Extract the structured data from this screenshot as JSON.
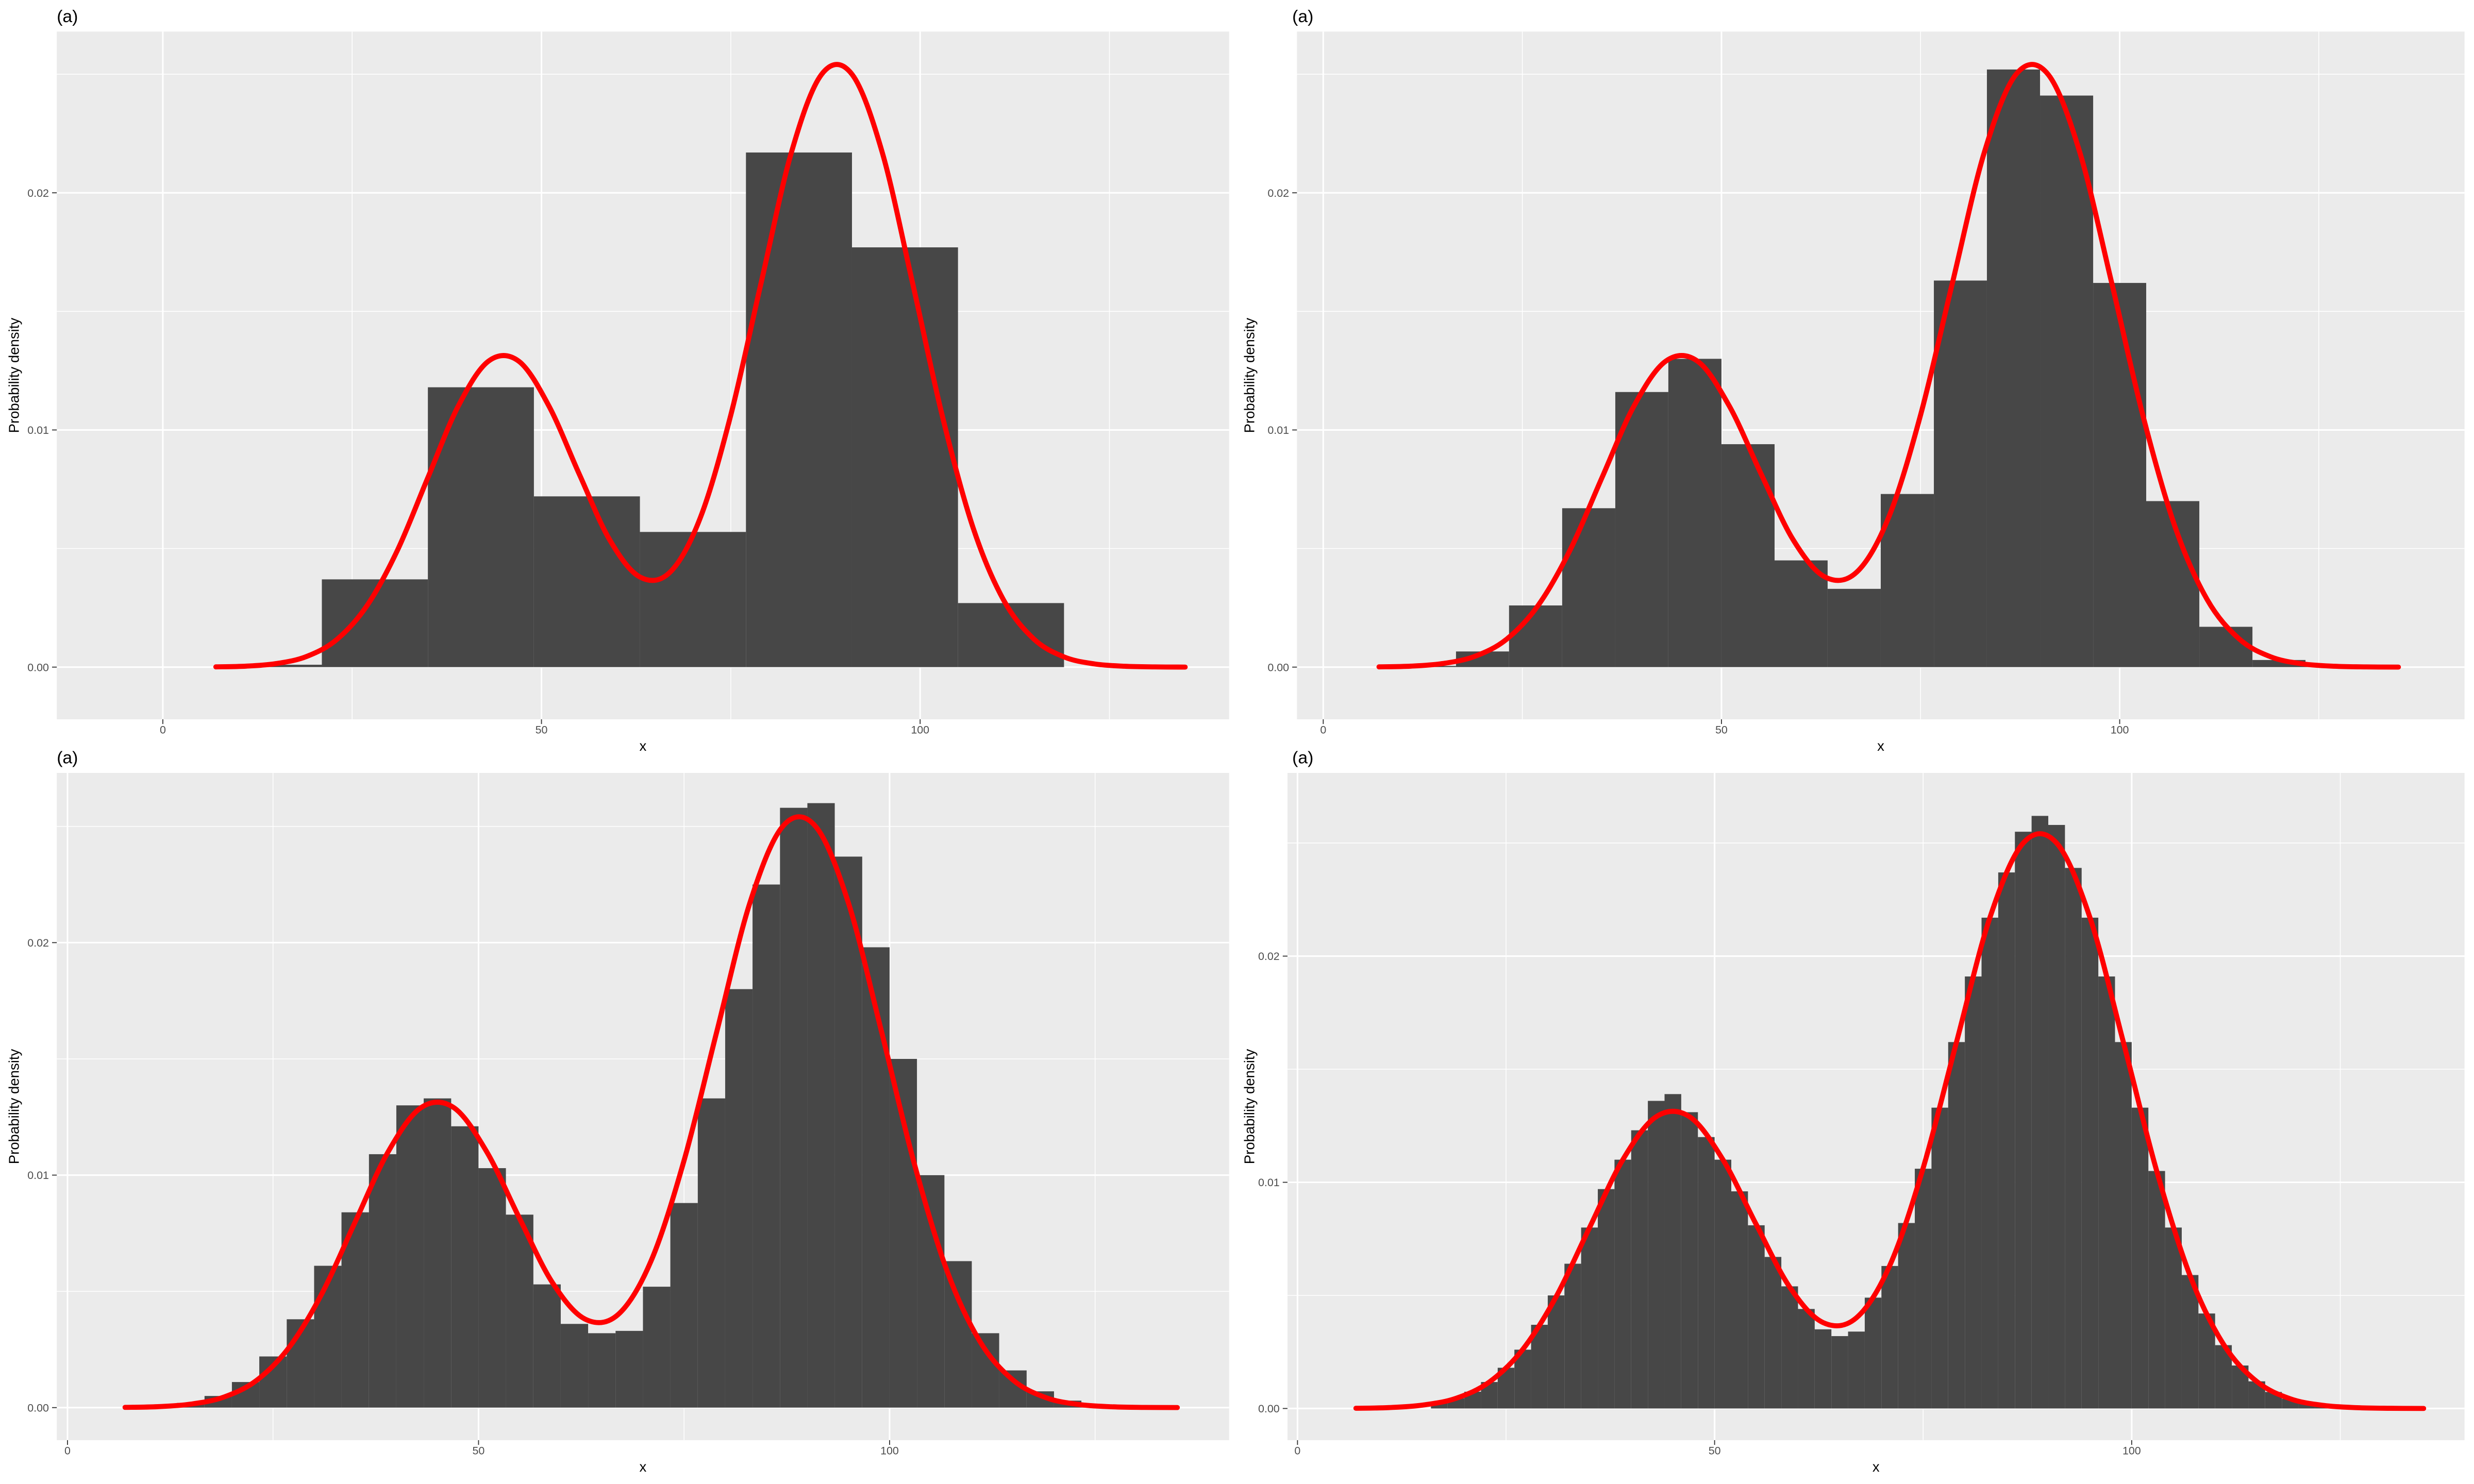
{
  "chart_data": [
    {
      "type": "histogram",
      "title": "(a)",
      "x_label": "x",
      "y_label": "Probability density",
      "color": "#474747",
      "background": "#ebebeb",
      "grid": true,
      "bins": [
        7,
        21,
        35,
        49,
        63,
        77,
        91,
        105,
        119
      ],
      "values": [
        0.0001,
        0.0037,
        0.0118,
        0.0072,
        0.0057,
        0.0217,
        0.0177,
        0.0027
      ],
      "line": {
        "color": "#ff0000",
        "x": [
          7,
          11,
          15,
          19,
          23,
          27,
          31,
          35,
          39,
          43,
          47,
          51,
          55,
          59,
          63,
          67,
          71,
          75,
          79,
          83,
          87,
          91,
          95,
          99,
          103,
          107,
          111,
          115,
          119,
          123,
          127,
          131,
          135
        ],
        "values": [
          1e-05,
          4e-05,
          0.00015,
          0.00045,
          0.00117,
          0.00261,
          0.00494,
          0.00799,
          0.011,
          0.0129,
          0.0129,
          0.011,
          0.00813,
          0.00537,
          0.0038,
          0.00401,
          0.00632,
          0.01063,
          0.0162,
          0.0217,
          0.025,
          0.025,
          0.0217,
          0.0162,
          0.0105,
          0.00587,
          0.00284,
          0.00119,
          0.00043,
          0.000135,
          3.6e-05,
          8.5e-06,
          1.7e-06
        ]
      },
      "xlim": [
        -14,
        140.8
      ],
      "ylim": [
        -0.0022,
        0.0268
      ],
      "xticks": [
        0,
        50,
        100
      ],
      "yticks": [
        {
          "value": 0,
          "label": "0.00"
        },
        0.01,
        0.02
      ],
      "xminor": [
        25,
        75,
        125
      ],
      "yminor": [
        0.005,
        0.015,
        0.025
      ]
    },
    {
      "type": "histogram",
      "title": "(a)",
      "x_label": "x",
      "y_label": "Probability density",
      "color": "#474747",
      "background": "#ebebeb",
      "grid": true,
      "bins": [
        10,
        16.67,
        23.33,
        30,
        36.67,
        43.33,
        50,
        56.67,
        63.33,
        70,
        76.67,
        83.33,
        90,
        96.67,
        103.33,
        110,
        116.67,
        123.33,
        130
      ],
      "values": [
        5e-05,
        0.00066,
        0.0026,
        0.0067,
        0.0116,
        0.013,
        0.0094,
        0.0045,
        0.0033,
        0.0073,
        0.0163,
        0.0252,
        0.0241,
        0.0162,
        0.007,
        0.0017,
        0.0003,
        5e-05
      ],
      "line": {
        "color": "#ff0000",
        "x": [
          7,
          11,
          15,
          19,
          23,
          27,
          31,
          35,
          39,
          43,
          47,
          51,
          55,
          59,
          63,
          67,
          71,
          75,
          79,
          83,
          87,
          91,
          95,
          99,
          103,
          107,
          111,
          115,
          119,
          123,
          127,
          131,
          135
        ],
        "values": [
          1e-05,
          4e-05,
          0.00015,
          0.00045,
          0.00117,
          0.00261,
          0.00494,
          0.00799,
          0.011,
          0.0129,
          0.0129,
          0.011,
          0.00813,
          0.00537,
          0.0038,
          0.00401,
          0.00632,
          0.01063,
          0.0162,
          0.0217,
          0.025,
          0.025,
          0.0217,
          0.0162,
          0.0105,
          0.00587,
          0.00284,
          0.00119,
          0.00043,
          0.000135,
          3.6e-05,
          8.5e-06,
          1.7e-06
        ]
      },
      "xlim": [
        -3.3,
        143.3
      ],
      "ylim": [
        -0.0022,
        0.0268
      ],
      "xticks": [
        0,
        50,
        100
      ],
      "yticks": [
        {
          "value": 0,
          "label": "0.00"
        },
        0.01,
        0.02
      ],
      "xminor": [
        25,
        75,
        125
      ],
      "yminor": [
        0.005,
        0.015,
        0.025
      ]
    },
    {
      "type": "histogram",
      "title": "(a)",
      "x_label": "x",
      "y_label": "Probability density",
      "color": "#474747",
      "background": "#ebebeb",
      "grid": true,
      "bins": [
        13.33,
        16.67,
        20,
        23.33,
        26.67,
        30,
        33.33,
        36.67,
        40,
        43.33,
        46.67,
        50,
        53.33,
        56.67,
        60,
        63.33,
        66.67,
        70,
        73.33,
        76.67,
        80,
        83.33,
        86.67,
        90,
        93.33,
        96.67,
        100,
        103.33,
        106.67,
        110,
        113.33,
        116.67,
        120,
        123.33,
        126.67
      ],
      "values": [
        0.0002,
        0.0005,
        0.0011,
        0.0022,
        0.0038,
        0.0061,
        0.0084,
        0.0109,
        0.013,
        0.0133,
        0.0121,
        0.0103,
        0.0083,
        0.0053,
        0.0036,
        0.0032,
        0.0033,
        0.0052,
        0.0088,
        0.0133,
        0.018,
        0.0225,
        0.0258,
        0.026,
        0.0237,
        0.0198,
        0.015,
        0.01,
        0.0063,
        0.0032,
        0.0016,
        0.0007,
        0.0003,
        0.0001
      ],
      "line": {
        "color": "#ff0000",
        "x": [
          7,
          11,
          15,
          19,
          23,
          27,
          31,
          35,
          39,
          43,
          47,
          51,
          55,
          59,
          63,
          67,
          71,
          75,
          79,
          83,
          87,
          91,
          95,
          99,
          103,
          107,
          111,
          115,
          119,
          123,
          127,
          131,
          135
        ],
        "values": [
          1e-05,
          4e-05,
          0.00015,
          0.00045,
          0.00117,
          0.00261,
          0.00494,
          0.00799,
          0.011,
          0.0129,
          0.0129,
          0.011,
          0.00813,
          0.00537,
          0.0038,
          0.00401,
          0.00632,
          0.01063,
          0.0162,
          0.0217,
          0.025,
          0.025,
          0.0217,
          0.0162,
          0.0105,
          0.00587,
          0.00284,
          0.00119,
          0.00043,
          0.000135,
          3.6e-05,
          8.5e-06,
          1.7e-06
        ]
      },
      "xlim": [
        -1.3,
        141.3
      ],
      "ylim": [
        -0.0014,
        0.0273
      ],
      "xticks": [
        0,
        50,
        100
      ],
      "yticks": [
        {
          "value": 0,
          "label": "0.00"
        },
        0.01,
        0.02
      ],
      "xminor": [
        25,
        75,
        125
      ],
      "yminor": [
        0.005,
        0.015,
        0.025
      ]
    },
    {
      "type": "histogram",
      "title": "(a)",
      "x_label": "x",
      "y_label": "Probability density",
      "color": "#474747",
      "background": "#ebebeb",
      "grid": true,
      "bins": [
        16,
        18,
        20,
        22,
        24,
        26,
        28,
        30,
        32,
        34,
        36,
        38,
        40,
        42,
        44,
        46,
        48,
        50,
        52,
        54,
        56,
        58,
        60,
        62,
        64,
        66,
        68,
        70,
        72,
        74,
        76,
        78,
        80,
        82,
        84,
        86,
        88,
        90,
        92,
        94,
        96,
        98,
        100,
        102,
        104,
        106,
        108,
        110,
        112,
        114,
        116,
        118,
        120,
        122,
        124,
        126
      ],
      "values": [
        0.00026,
        0.00045,
        0.00074,
        0.00117,
        0.0018,
        0.0026,
        0.0037,
        0.005,
        0.0064,
        0.008,
        0.0097,
        0.011,
        0.0123,
        0.0136,
        0.0139,
        0.0131,
        0.012,
        0.011,
        0.0096,
        0.0081,
        0.0067,
        0.0054,
        0.0044,
        0.0035,
        0.0032,
        0.0034,
        0.0049,
        0.0063,
        0.0082,
        0.0106,
        0.0133,
        0.0162,
        0.0191,
        0.0217,
        0.0237,
        0.0255,
        0.0262,
        0.0258,
        0.0239,
        0.0217,
        0.0191,
        0.0162,
        0.0133,
        0.0105,
        0.008,
        0.0059,
        0.0042,
        0.0028,
        0.0019,
        0.0012,
        0.00073,
        0.00043,
        0.00025,
        0.00014,
        7e-05
      ],
      "line": {
        "color": "#ff0000",
        "x": [
          7,
          11,
          15,
          19,
          23,
          27,
          31,
          35,
          39,
          43,
          47,
          51,
          55,
          59,
          63,
          67,
          71,
          75,
          79,
          83,
          87,
          91,
          95,
          99,
          103,
          107,
          111,
          115,
          119,
          123,
          127,
          131,
          135
        ],
        "values": [
          1e-05,
          4e-05,
          0.00015,
          0.00045,
          0.00117,
          0.00261,
          0.00494,
          0.00799,
          0.011,
          0.0129,
          0.0129,
          0.011,
          0.00813,
          0.00537,
          0.0038,
          0.00401,
          0.00632,
          0.01063,
          0.0162,
          0.0217,
          0.025,
          0.025,
          0.0217,
          0.0162,
          0.0105,
          0.00587,
          0.00284,
          0.00119,
          0.00043,
          0.000135,
          3.6e-05,
          8.5e-06,
          1.7e-06
        ]
      },
      "xlim": [
        -1.2,
        139.9
      ],
      "ylim": [
        -0.0014,
        0.0281
      ],
      "xticks": [
        0,
        50,
        100
      ],
      "yticks": [
        {
          "value": 0,
          "label": "0.00"
        },
        0.01,
        0.02
      ],
      "xminor": [
        25,
        75,
        125
      ],
      "yminor": [
        0.005,
        0.015,
        0.025
      ]
    }
  ]
}
